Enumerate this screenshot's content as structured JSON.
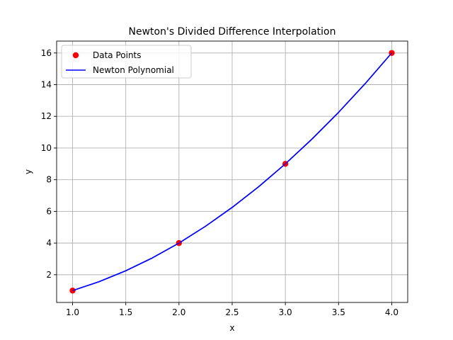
{
  "chart_data": {
    "type": "line",
    "title": "Newton's Divided Difference Interpolation",
    "xlabel": "x",
    "ylabel": "y",
    "xlim": [
      0.85,
      4.15
    ],
    "ylim": [
      0.25,
      16.75
    ],
    "xticks": [
      1.0,
      1.5,
      2.0,
      2.5,
      3.0,
      3.5,
      4.0
    ],
    "xtick_labels": [
      "1.0",
      "1.5",
      "2.0",
      "2.5",
      "3.0",
      "3.5",
      "4.0"
    ],
    "yticks": [
      2,
      4,
      6,
      8,
      10,
      12,
      14,
      16
    ],
    "ytick_labels": [
      "2",
      "4",
      "6",
      "8",
      "10",
      "12",
      "14",
      "16"
    ],
    "grid": true,
    "legend_position": "top-left",
    "series": [
      {
        "name": "Data Points",
        "kind": "scatter",
        "color": "#ff0000",
        "x": [
          1,
          2,
          3,
          4
        ],
        "y": [
          1,
          4,
          9,
          16
        ]
      },
      {
        "name": "Newton Polynomial",
        "kind": "line",
        "color": "#0000ff",
        "x": [
          1.0,
          1.25,
          1.5,
          1.75,
          2.0,
          2.25,
          2.5,
          2.75,
          3.0,
          3.25,
          3.5,
          3.75,
          4.0
        ],
        "y": [
          1.0,
          1.5625,
          2.25,
          3.0625,
          4.0,
          5.0625,
          6.25,
          7.5625,
          9.0,
          10.5625,
          12.25,
          14.0625,
          16.0
        ]
      }
    ]
  }
}
